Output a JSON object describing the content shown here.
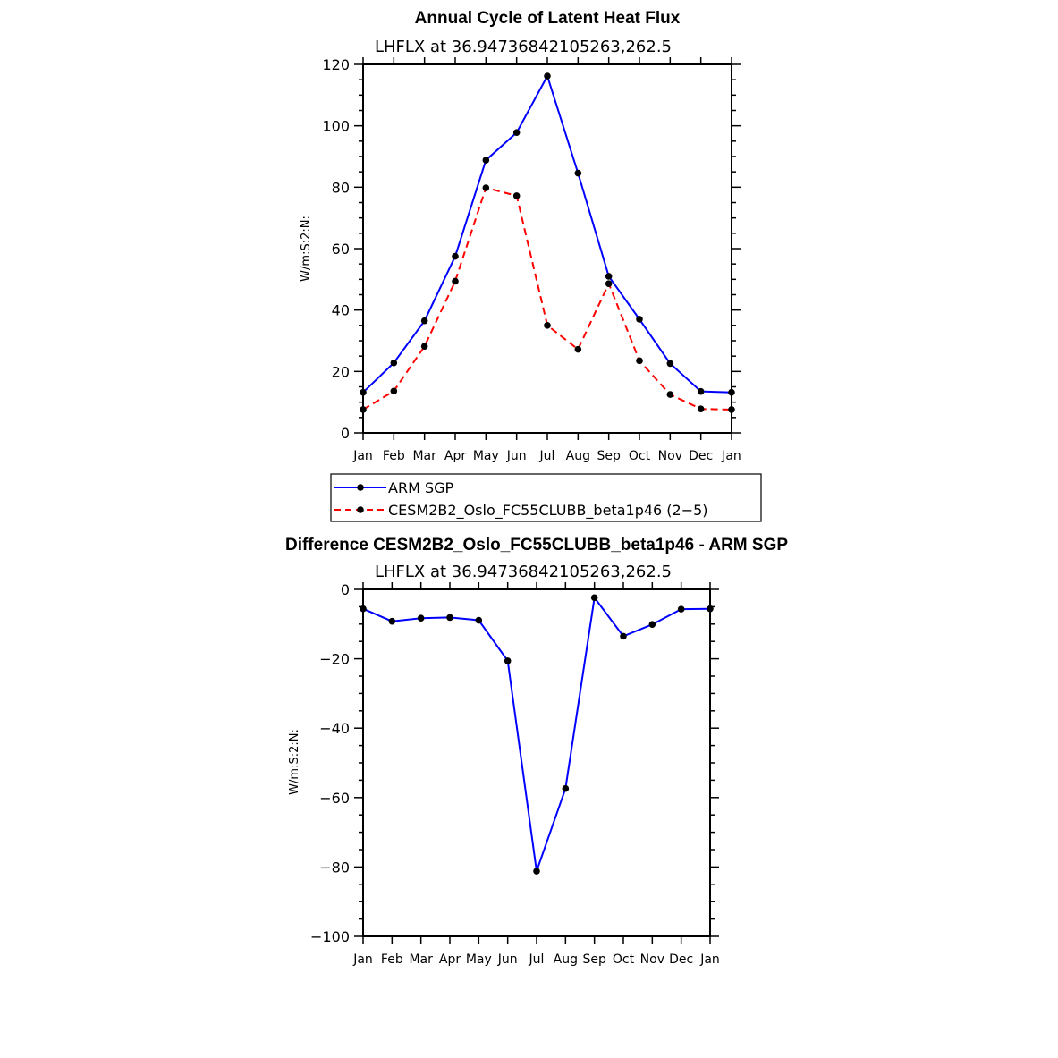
{
  "chart_data": [
    {
      "type": "line",
      "title": "Annual Cycle of Latent Heat Flux",
      "subtitle": "LHFLX at 36.94736842105263,262.5",
      "ylabel": "W/m:S:2:N:",
      "xlabel": "",
      "categories": [
        "Jan",
        "Feb",
        "Mar",
        "Apr",
        "May",
        "Jun",
        "Jul",
        "Aug",
        "Sep",
        "Oct",
        "Nov",
        "Dec",
        "Jan"
      ],
      "ylim": [
        0,
        120
      ],
      "yticks": [
        0,
        20,
        40,
        60,
        80,
        100,
        120
      ],
      "series": [
        {
          "name": "ARM SGP",
          "color": "#0000ff",
          "dash": "solid",
          "values": [
            13.2,
            22.8,
            36.5,
            57.5,
            88.8,
            97.8,
            116.2,
            84.6,
            51.0,
            37.0,
            22.6,
            13.5,
            13.2
          ]
        },
        {
          "name": "CESM2B2_Oslo_FC55CLUBB_beta1p46 (2−5)",
          "color": "#ff0000",
          "dash": "dashed",
          "values": [
            7.6,
            13.6,
            28.2,
            49.4,
            79.8,
            77.2,
            35.0,
            27.2,
            48.6,
            23.5,
            12.5,
            7.8,
            7.6
          ]
        }
      ],
      "legend": "below"
    },
    {
      "type": "line",
      "title": "Difference CESM2B2_Oslo_FC55CLUBB_beta1p46 - ARM SGP",
      "subtitle": "LHFLX at 36.94736842105263,262.5",
      "ylabel": "W/m:S:2:N:",
      "xlabel": "",
      "categories": [
        "Jan",
        "Feb",
        "Mar",
        "Apr",
        "May",
        "Jun",
        "Jul",
        "Aug",
        "Sep",
        "Oct",
        "Nov",
        "Dec",
        "Jan"
      ],
      "ylim": [
        -100,
        0
      ],
      "yticks": [
        -100,
        -80,
        -60,
        -40,
        -20,
        0
      ],
      "series": [
        {
          "color": "#0000ff",
          "dash": "solid",
          "values": [
            -5.6,
            -9.2,
            -8.3,
            -8.1,
            -8.9,
            -20.6,
            -81.2,
            -57.4,
            -2.4,
            -13.5,
            -10.1,
            -5.7,
            -5.6
          ]
        }
      ]
    }
  ]
}
